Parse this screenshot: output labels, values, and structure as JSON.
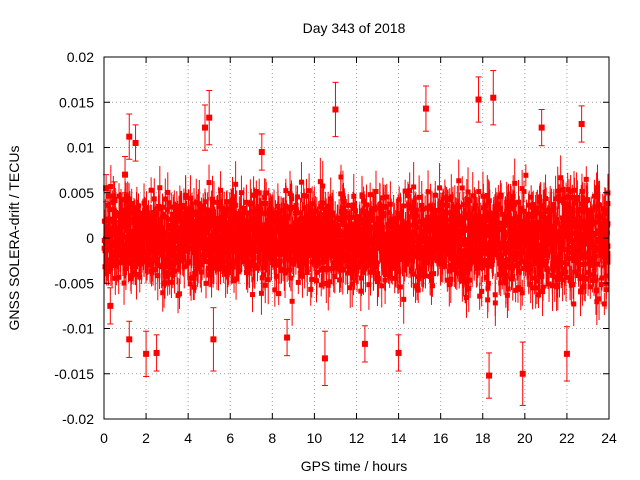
{
  "chart_data": {
    "type": "scatter",
    "title": "Day 343 of 2018",
    "xlabel": "GPS time / hours",
    "ylabel": "GNSS SOLERA-drift / TECUs",
    "xlim": [
      0,
      24
    ],
    "ylim": [
      -0.02,
      0.02
    ],
    "xticks": [
      0,
      2,
      4,
      6,
      8,
      10,
      12,
      14,
      16,
      18,
      20,
      22,
      24
    ],
    "xtick_labels": [
      "0",
      "2",
      "4",
      "6",
      "8",
      "10",
      "12",
      "14",
      "16",
      "18",
      "20",
      "22",
      "24"
    ],
    "yticks": [
      -0.02,
      -0.015,
      -0.01,
      -0.005,
      0,
      0.005,
      0.01,
      0.015,
      0.02
    ],
    "ytick_labels": [
      "-0.02",
      "-0.015",
      "-0.01",
      "-0.005",
      "0",
      "0.005",
      "0.01",
      "0.015",
      "0.02"
    ],
    "grid": true,
    "legend": "none",
    "series": [
      {
        "name": "SOLERA drift",
        "marker": "square",
        "error_bars": true,
        "color": "#ff0000",
        "points": [
          {
            "x": 0.1,
            "y": 0.0055,
            "err": 0.0015
          },
          {
            "x": 0.3,
            "y": -0.0075,
            "err": 0.002
          },
          {
            "x": 0.5,
            "y": 0.0042,
            "err": 0.002
          },
          {
            "x": 1.0,
            "y": 0.007,
            "err": 0.002
          },
          {
            "x": 1.2,
            "y": 0.0112,
            "err": 0.0025
          },
          {
            "x": 1.5,
            "y": 0.0105,
            "err": 0.002
          },
          {
            "x": 1.2,
            "y": -0.0112,
            "err": 0.002
          },
          {
            "x": 2.0,
            "y": -0.0128,
            "err": 0.0025
          },
          {
            "x": 2.5,
            "y": -0.0127,
            "err": 0.002
          },
          {
            "x": 4.8,
            "y": 0.0122,
            "err": 0.0025
          },
          {
            "x": 5.0,
            "y": 0.0133,
            "err": 0.003
          },
          {
            "x": 5.2,
            "y": -0.0112,
            "err": 0.0035
          },
          {
            "x": 7.5,
            "y": 0.0095,
            "err": 0.002
          },
          {
            "x": 8.7,
            "y": -0.011,
            "err": 0.002
          },
          {
            "x": 10.5,
            "y": -0.0133,
            "err": 0.003
          },
          {
            "x": 11.0,
            "y": 0.0142,
            "err": 0.003
          },
          {
            "x": 12.4,
            "y": -0.0117,
            "err": 0.002
          },
          {
            "x": 14.0,
            "y": -0.0127,
            "err": 0.002
          },
          {
            "x": 15.3,
            "y": 0.0143,
            "err": 0.0025
          },
          {
            "x": 17.8,
            "y": 0.0153,
            "err": 0.0025
          },
          {
            "x": 18.3,
            "y": -0.0152,
            "err": 0.0025
          },
          {
            "x": 18.5,
            "y": 0.0155,
            "err": 0.003
          },
          {
            "x": 19.9,
            "y": -0.015,
            "err": 0.0035
          },
          {
            "x": 20.8,
            "y": 0.0122,
            "err": 0.002
          },
          {
            "x": 22.0,
            "y": -0.0128,
            "err": 0.003
          },
          {
            "x": 22.7,
            "y": 0.0126,
            "err": 0.002
          },
          {
            "x": 23.8,
            "y": -0.0007,
            "err": 0.002
          }
        ]
      }
    ]
  }
}
